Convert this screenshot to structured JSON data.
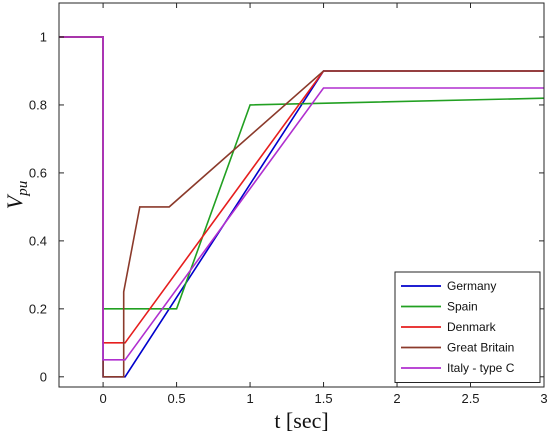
{
  "chart_data": {
    "type": "line",
    "xlabel": "t [sec]",
    "ylabel_main": "V",
    "ylabel_sub": "pu",
    "xlim": [
      -0.3,
      3
    ],
    "ylim": [
      -0.03,
      1.1
    ],
    "xticks": [
      0,
      0.5,
      1,
      1.5,
      2,
      2.5,
      3
    ],
    "xtick_labels": [
      "0",
      "0.5",
      "1",
      "1.5",
      "2",
      "2.5",
      "3"
    ],
    "yticks": [
      0,
      0.2,
      0.4,
      0.6,
      0.8,
      1
    ],
    "ytick_labels": [
      "0",
      "0.2",
      "0.4",
      "0.6",
      "0.8",
      "1"
    ],
    "grid": false,
    "legend_position": "bottom-right",
    "series": [
      {
        "name": "Germany",
        "color": "#0000cc",
        "points": [
          [
            -0.3,
            1
          ],
          [
            0,
            1
          ],
          [
            0,
            0
          ],
          [
            0.15,
            0
          ],
          [
            1.5,
            0.9
          ],
          [
            3,
            0.9
          ]
        ]
      },
      {
        "name": "Spain",
        "color": "#22a022",
        "points": [
          [
            -0.3,
            1
          ],
          [
            0,
            1
          ],
          [
            0,
            0.2
          ],
          [
            0.5,
            0.2
          ],
          [
            1,
            0.8
          ],
          [
            3,
            0.82
          ]
        ]
      },
      {
        "name": "Denmark",
        "color": "#e61e1e",
        "points": [
          [
            -0.3,
            1
          ],
          [
            0,
            1
          ],
          [
            0,
            0.1
          ],
          [
            0.15,
            0.1
          ],
          [
            1.5,
            0.9
          ],
          [
            3,
            0.9
          ]
        ]
      },
      {
        "name": "Great Britain",
        "color": "#8b3a2b",
        "points": [
          [
            -0.3,
            1
          ],
          [
            0,
            1
          ],
          [
            0,
            0
          ],
          [
            0.14,
            0
          ],
          [
            0.14,
            0.25
          ],
          [
            0.25,
            0.5
          ],
          [
            0.45,
            0.5
          ],
          [
            1.5,
            0.9
          ],
          [
            3,
            0.9
          ]
        ]
      },
      {
        "name": "Italy - type C",
        "color": "#b02fcf",
        "points": [
          [
            -0.3,
            1
          ],
          [
            0,
            1
          ],
          [
            0,
            0.05
          ],
          [
            0.15,
            0.05
          ],
          [
            1.5,
            0.85
          ],
          [
            3,
            0.85
          ]
        ]
      }
    ]
  }
}
